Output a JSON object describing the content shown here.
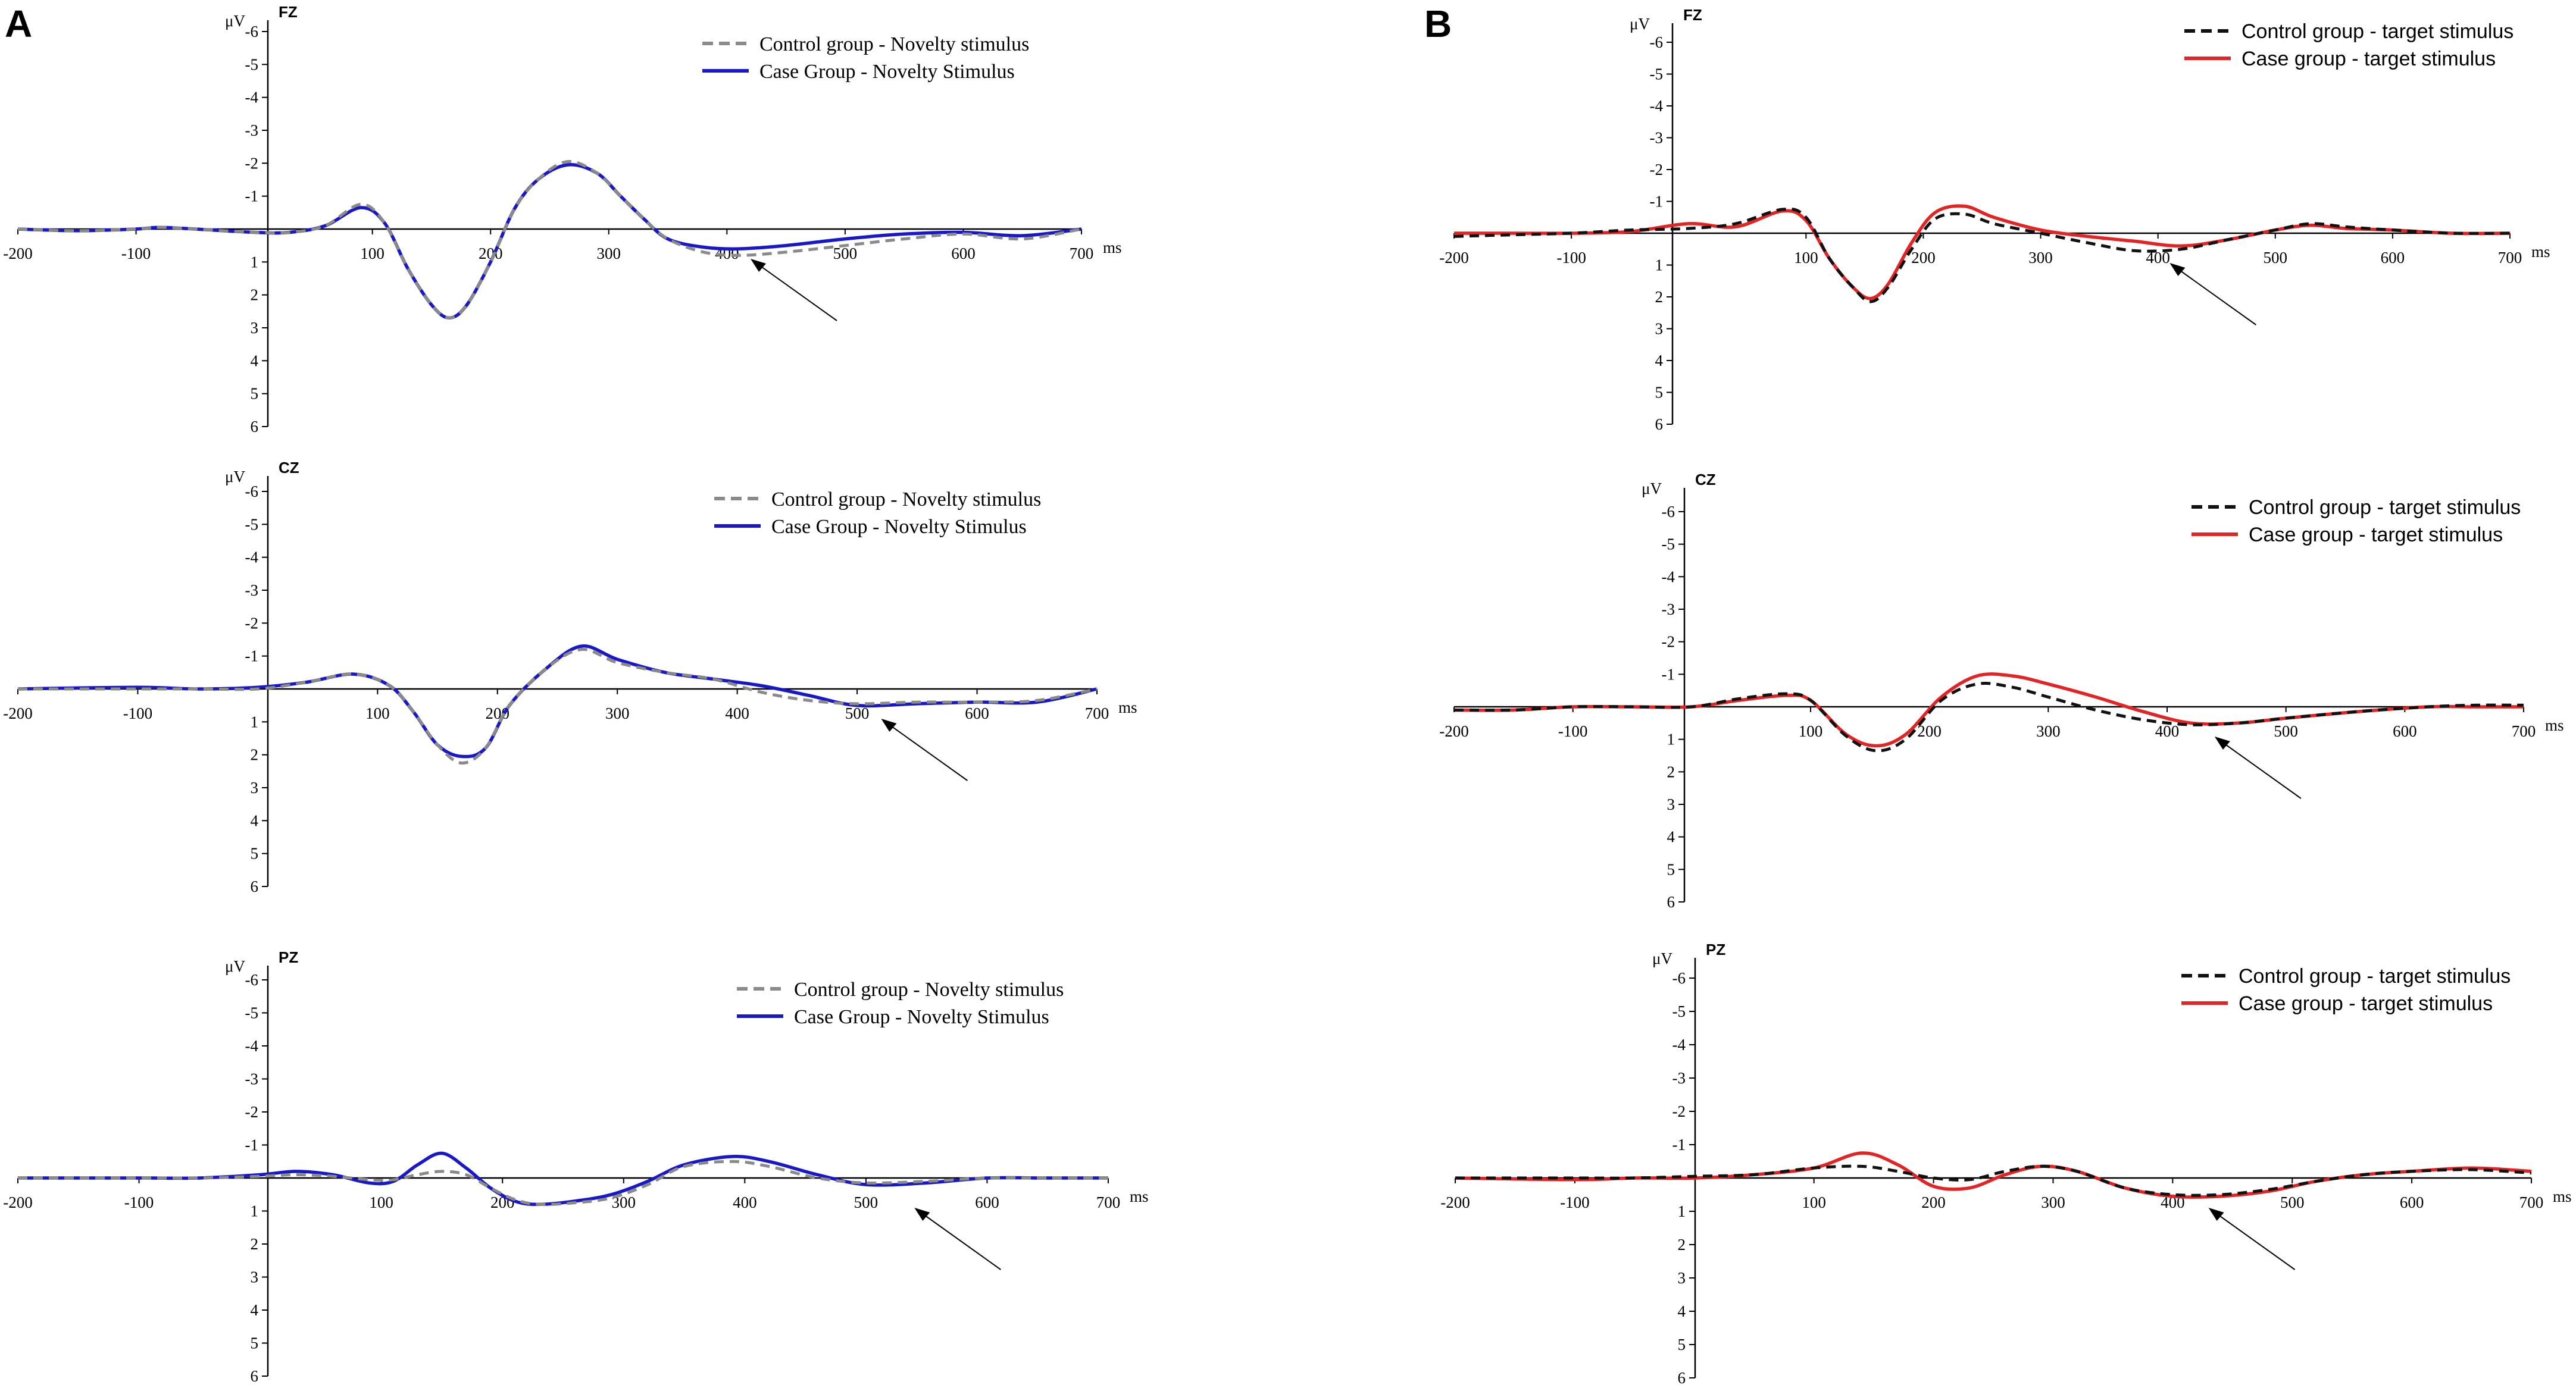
{
  "panel_labels": [
    "A",
    "B"
  ],
  "colors": {
    "novelty_case": "#1818c8",
    "novelty_control": "#8a8a8a",
    "target_case": "#e32424",
    "target_control": "#111111"
  },
  "chart_data": [
    {
      "type": "line",
      "panel": "A",
      "site": "FZ",
      "ylabel": "μV",
      "xlabel": "ms",
      "xlim": [
        -200,
        700
      ],
      "ylim": [
        -6,
        6
      ],
      "y_inverted": true,
      "x_ticks": [
        "-200",
        "-100",
        "100",
        "200",
        "300",
        "400",
        "500",
        "600",
        "700"
      ],
      "y_ticks": [
        "-6",
        "-5",
        "-4",
        "-3",
        "-2",
        "-1",
        "1",
        "2",
        "3",
        "4",
        "5",
        "6"
      ],
      "legend": [
        "Control group - Novelty  stimulus",
        "Case Group - Novelty Stimulus"
      ],
      "arrow_at_ms": 420,
      "series": [
        {
          "name": "Control group - Novelty  stimulus",
          "style": "dashed",
          "x": [
            -200,
            -150,
            -100,
            -80,
            -50,
            0,
            30,
            60,
            90,
            110,
            130,
            150,
            165,
            180,
            200,
            220,
            240,
            265,
            290,
            310,
            330,
            350,
            380,
            410,
            450,
            500,
            550,
            600,
            650,
            700
          ],
          "y": [
            0,
            0.05,
            0,
            -0.05,
            0,
            0.1,
            0.1,
            -0.1,
            -0.75,
            -0.2,
            1.2,
            2.3,
            2.7,
            2.3,
            1,
            -0.6,
            -1.5,
            -2.05,
            -1.7,
            -1,
            -0.3,
            0.3,
            0.7,
            0.8,
            0.7,
            0.5,
            0.3,
            0.15,
            0.3,
            0
          ]
        },
        {
          "name": "Case Group - Novelty Stimulus",
          "style": "solid",
          "x": [
            -200,
            -150,
            -100,
            -80,
            -50,
            0,
            30,
            60,
            90,
            110,
            130,
            150,
            165,
            180,
            200,
            220,
            240,
            265,
            290,
            310,
            330,
            350,
            380,
            410,
            450,
            500,
            550,
            600,
            650,
            700
          ],
          "y": [
            0,
            0.05,
            0,
            -0.05,
            0,
            0.1,
            0.1,
            -0.1,
            -0.65,
            -0.2,
            1.2,
            2.3,
            2.7,
            2.3,
            1,
            -0.6,
            -1.5,
            -1.95,
            -1.7,
            -1,
            -0.3,
            0.3,
            0.55,
            0.6,
            0.5,
            0.3,
            0.15,
            0.1,
            0.2,
            0
          ]
        }
      ]
    },
    {
      "type": "line",
      "panel": "A",
      "site": "CZ",
      "ylabel": "μV",
      "xlabel": "ms",
      "xlim": [
        -200,
        700
      ],
      "ylim": [
        -6,
        6
      ],
      "y_inverted": true,
      "x_ticks": [
        "-200",
        "-100",
        "100",
        "200",
        "300",
        "400",
        "500",
        "600",
        "700"
      ],
      "y_ticks": [
        "-6",
        "-5",
        "-4",
        "-3",
        "-2",
        "-1",
        "1",
        "2",
        "3",
        "4",
        "5",
        "6"
      ],
      "legend": [
        "Control group - Novelty  stimulus",
        "Case Group - Novelty Stimulus"
      ],
      "arrow_at_ms": 520,
      "series": [
        {
          "name": "Control group - Novelty  stimulus",
          "style": "dashed",
          "x": [
            -200,
            -100,
            -50,
            0,
            40,
            80,
            110,
            130,
            150,
            170,
            190,
            210,
            240,
            270,
            300,
            340,
            380,
            420,
            460,
            500,
            550,
            600,
            650,
            700
          ],
          "y": [
            0,
            0,
            0,
            0,
            -0.2,
            -0.45,
            -0.1,
            0.7,
            1.7,
            2.25,
            1.8,
            0.5,
            -0.6,
            -1.2,
            -0.8,
            -0.5,
            -0.3,
            0.1,
            0.35,
            0.45,
            0.4,
            0.4,
            0.35,
            0
          ]
        },
        {
          "name": "Case Group - Novelty Stimulus",
          "style": "solid",
          "x": [
            -200,
            -100,
            -50,
            0,
            40,
            80,
            110,
            130,
            150,
            170,
            190,
            210,
            240,
            270,
            300,
            340,
            380,
            420,
            460,
            500,
            550,
            600,
            650,
            700
          ],
          "y": [
            0,
            -0.05,
            0,
            -0.05,
            -0.2,
            -0.45,
            -0.1,
            0.7,
            1.7,
            2.05,
            1.8,
            0.5,
            -0.6,
            -1.3,
            -0.9,
            -0.5,
            -0.3,
            -0.1,
            0.2,
            0.5,
            0.45,
            0.4,
            0.4,
            0
          ]
        }
      ]
    },
    {
      "type": "line",
      "panel": "A",
      "site": "PZ",
      "ylabel": "μV",
      "xlabel": "ms",
      "xlim": [
        -200,
        700
      ],
      "ylim": [
        -6,
        6
      ],
      "y_inverted": true,
      "x_ticks": [
        "-200",
        "-100",
        "100",
        "200",
        "300",
        "400",
        "500",
        "600",
        "700"
      ],
      "y_ticks": [
        "-6",
        "-5",
        "-4",
        "-3",
        "-2",
        "-1",
        "1",
        "2",
        "3",
        "4",
        "5",
        "6"
      ],
      "legend": [
        "Control group - Novelty  stimulus",
        "Case Group - Novelty Stimulus"
      ],
      "arrow_at_ms": 540,
      "series": [
        {
          "name": "Control group - Novelty  stimulus",
          "style": "dashed",
          "x": [
            -200,
            -100,
            -50,
            0,
            30,
            60,
            90,
            110,
            130,
            150,
            170,
            190,
            210,
            230,
            260,
            290,
            320,
            350,
            390,
            420,
            460,
            500,
            550,
            600,
            650,
            700
          ],
          "y": [
            0,
            0,
            0,
            -0.05,
            -0.1,
            -0.05,
            0.05,
            0.05,
            -0.1,
            -0.2,
            -0.1,
            0.3,
            0.65,
            0.8,
            0.75,
            0.6,
            0.2,
            -0.35,
            -0.5,
            -0.35,
            0,
            0.15,
            0.1,
            0,
            0,
            0
          ]
        },
        {
          "name": "Case Group - Novelty Stimulus",
          "style": "solid",
          "x": [
            -200,
            -100,
            -50,
            0,
            30,
            60,
            90,
            110,
            130,
            150,
            170,
            190,
            210,
            230,
            260,
            290,
            320,
            350,
            390,
            420,
            460,
            500,
            550,
            600,
            650,
            700
          ],
          "y": [
            0,
            0,
            0,
            -0.1,
            -0.2,
            -0.1,
            0.15,
            0.1,
            -0.4,
            -0.75,
            -0.3,
            0.3,
            0.7,
            0.8,
            0.7,
            0.5,
            0.1,
            -0.4,
            -0.65,
            -0.5,
            -0.1,
            0.2,
            0.15,
            0,
            0,
            0
          ]
        }
      ]
    },
    {
      "type": "line",
      "panel": "B",
      "site": "FZ",
      "ylabel": "μV",
      "xlabel": "ms",
      "xlim": [
        -200,
        700
      ],
      "ylim": [
        -6,
        6
      ],
      "y_inverted": true,
      "x_ticks": [
        "-200",
        "-100",
        "100",
        "200",
        "300",
        "400",
        "500",
        "600",
        "700"
      ],
      "y_ticks": [
        "-6",
        "-5",
        "-4",
        "-3",
        "-2",
        "-1",
        "1",
        "2",
        "3",
        "4",
        "5",
        "6"
      ],
      "legend": [
        "Control group - target stimulus",
        "Case group - target stimulus"
      ],
      "arrow_at_ms": 410,
      "series": [
        {
          "name": "Control group - target stimulus",
          "style": "dashed",
          "x": [
            -200,
            -150,
            -100,
            -50,
            0,
            40,
            80,
            100,
            120,
            140,
            155,
            170,
            190,
            210,
            235,
            260,
            300,
            340,
            380,
            420,
            460,
            500,
            530,
            560,
            600,
            650,
            700
          ],
          "y": [
            0.1,
            0.05,
            0,
            -0.1,
            -0.15,
            -0.3,
            -0.75,
            -0.5,
            0.8,
            1.7,
            2.15,
            1.7,
            0.5,
            -0.45,
            -0.6,
            -0.3,
            0,
            0.3,
            0.55,
            0.5,
            0.2,
            -0.1,
            -0.3,
            -0.2,
            -0.1,
            0,
            0
          ]
        },
        {
          "name": "Case group - target stimulus",
          "style": "solid",
          "x": [
            -200,
            -150,
            -100,
            -50,
            0,
            40,
            80,
            100,
            120,
            140,
            155,
            170,
            190,
            210,
            235,
            260,
            300,
            340,
            380,
            420,
            460,
            500,
            530,
            560,
            600,
            650,
            700
          ],
          "y": [
            0,
            0,
            0,
            -0.05,
            -0.3,
            -0.2,
            -0.7,
            -0.4,
            0.8,
            1.7,
            2.05,
            1.6,
            0.3,
            -0.65,
            -0.85,
            -0.5,
            -0.1,
            0.1,
            0.25,
            0.4,
            0.2,
            -0.1,
            -0.25,
            -0.15,
            -0.1,
            0,
            0
          ]
        }
      ]
    },
    {
      "type": "line",
      "panel": "B",
      "site": "CZ",
      "ylabel": "μV",
      "xlabel": "ms",
      "xlim": [
        -200,
        700
      ],
      "ylim": [
        -6,
        6
      ],
      "y_inverted": true,
      "x_ticks": [
        "-200",
        "-100",
        "100",
        "200",
        "300",
        "400",
        "500",
        "600",
        "700"
      ],
      "y_ticks": [
        "-6",
        "-5",
        "-4",
        "-3",
        "-2",
        "-1",
        "1",
        "2",
        "3",
        "4",
        "5",
        "6"
      ],
      "legend": [
        "Control group - target stimulus",
        "Case group - target stimulus"
      ],
      "arrow_at_ms": 440,
      "series": [
        {
          "name": "Control group - target stimulus",
          "style": "dashed",
          "x": [
            -200,
            -150,
            -100,
            -50,
            0,
            40,
            80,
            100,
            130,
            155,
            180,
            210,
            240,
            270,
            300,
            340,
            380,
            420,
            460,
            500,
            560,
            620,
            660,
            700
          ],
          "y": [
            0.1,
            0.1,
            0,
            0,
            0,
            -0.25,
            -0.4,
            -0.2,
            0.9,
            1.35,
            1.0,
            -0.2,
            -0.7,
            -0.6,
            -0.3,
            0.1,
            0.4,
            0.55,
            0.5,
            0.35,
            0.15,
            0,
            -0.05,
            -0.05
          ]
        },
        {
          "name": "Case group - target stimulus",
          "style": "solid",
          "x": [
            -200,
            -150,
            -100,
            -50,
            0,
            40,
            80,
            100,
            130,
            155,
            180,
            210,
            240,
            270,
            300,
            340,
            380,
            420,
            460,
            500,
            560,
            620,
            660,
            700
          ],
          "y": [
            0.1,
            0.1,
            0,
            0,
            0,
            -0.2,
            -0.35,
            -0.2,
            0.85,
            1.2,
            0.85,
            -0.3,
            -0.95,
            -0.95,
            -0.7,
            -0.3,
            0.15,
            0.5,
            0.5,
            0.35,
            0.15,
            0,
            0,
            0
          ]
        }
      ]
    },
    {
      "type": "line",
      "panel": "B",
      "site": "PZ",
      "ylabel": "μV",
      "xlabel": "ms",
      "xlim": [
        -200,
        700
      ],
      "ylim": [
        -6,
        6
      ],
      "y_inverted": true,
      "x_ticks": [
        "-200",
        "-100",
        "100",
        "200",
        "300",
        "400",
        "500",
        "600",
        "700"
      ],
      "y_ticks": [
        "-6",
        "-5",
        "-4",
        "-3",
        "-2",
        "-1",
        "1",
        "2",
        "3",
        "4",
        "5",
        "6"
      ],
      "legend": [
        "Control group - target stimulus",
        "Case group - target stimulus"
      ],
      "arrow_at_ms": 430,
      "series": [
        {
          "name": "Control group - target stimulus",
          "style": "dashed",
          "x": [
            -200,
            -100,
            -50,
            0,
            50,
            100,
            140,
            170,
            200,
            230,
            260,
            290,
            320,
            360,
            400,
            440,
            480,
            520,
            560,
            600,
            650,
            700
          ],
          "y": [
            0,
            0,
            0,
            -0.05,
            -0.1,
            -0.3,
            -0.35,
            -0.2,
            0,
            0.05,
            -0.2,
            -0.35,
            -0.2,
            0.3,
            0.5,
            0.5,
            0.35,
            0.1,
            -0.1,
            -0.2,
            -0.25,
            -0.15
          ]
        },
        {
          "name": "Case group - target stimulus",
          "style": "solid",
          "x": [
            -200,
            -100,
            -50,
            0,
            50,
            100,
            140,
            170,
            200,
            230,
            260,
            290,
            320,
            360,
            400,
            440,
            480,
            520,
            560,
            600,
            650,
            700
          ],
          "y": [
            0,
            0.05,
            0,
            0,
            -0.1,
            -0.3,
            -0.75,
            -0.4,
            0.25,
            0.3,
            -0.1,
            -0.35,
            -0.2,
            0.3,
            0.55,
            0.55,
            0.4,
            0.1,
            -0.1,
            -0.2,
            -0.3,
            -0.2
          ]
        }
      ]
    }
  ]
}
